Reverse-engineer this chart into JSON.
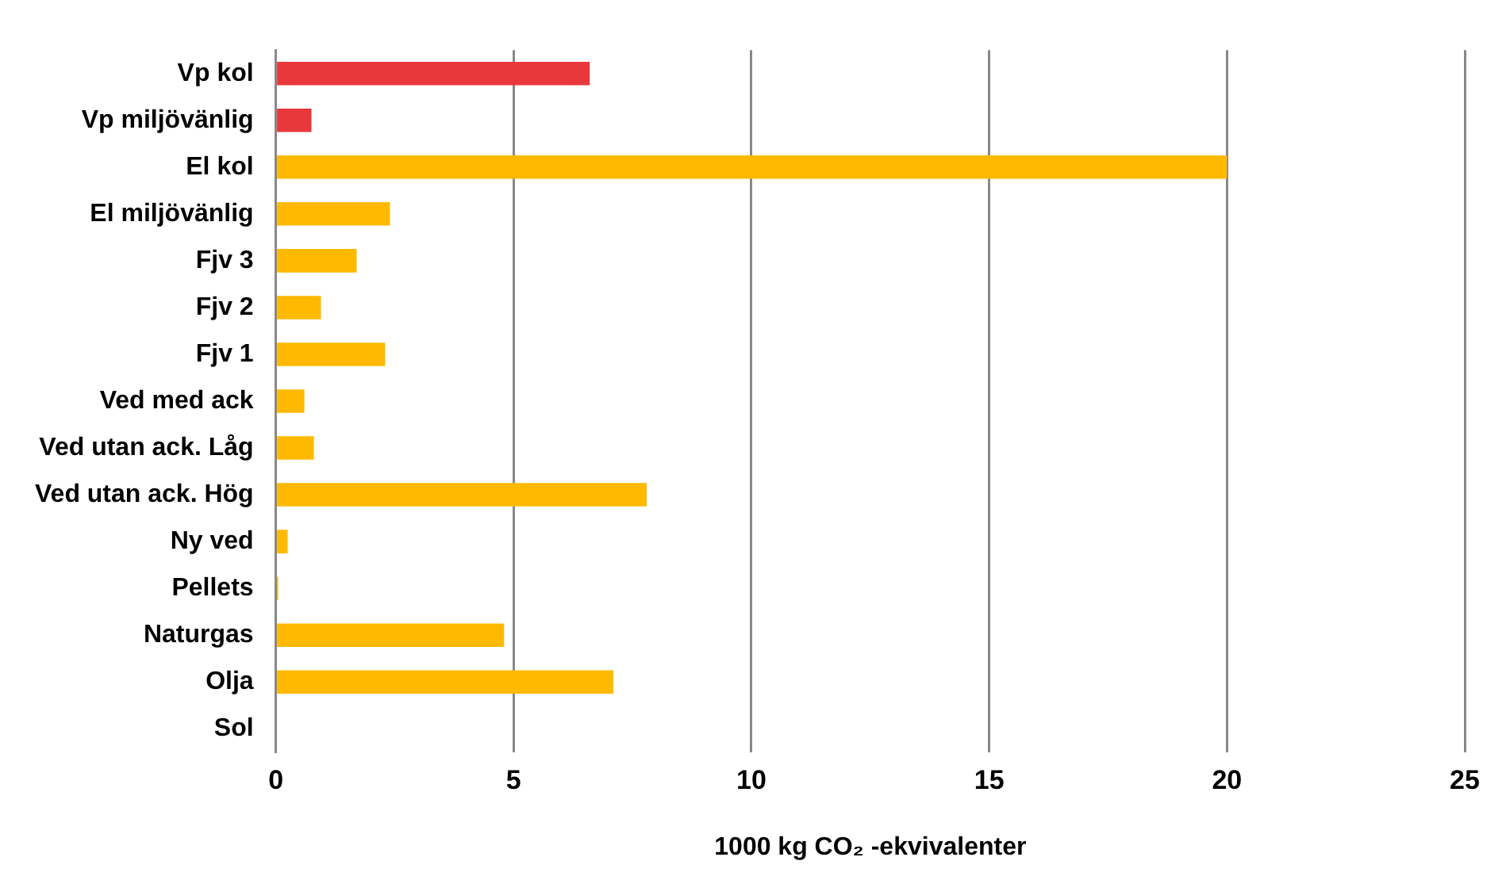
{
  "chart_data": {
    "type": "bar",
    "orientation": "horizontal",
    "xlabel": "1000 kg CO₂ -ekvivalenter",
    "categories": [
      "Vp kol",
      "Vp miljövänlig",
      "El kol",
      "El miljövänlig",
      "Fjv 3",
      "Fjv 2",
      "Fjv 1",
      "Ved med ack",
      "Ved utan ack. Låg",
      "Ved utan ack. Hög",
      "Ny ved",
      "Pellets",
      "Naturgas",
      "Olja",
      "Sol"
    ],
    "values": [
      6.6,
      0.75,
      20,
      2.4,
      1.7,
      0.95,
      2.3,
      0.6,
      0.8,
      7.8,
      0.25,
      0.05,
      4.8,
      7.1,
      0
    ],
    "colors": [
      "#e8383b",
      "#e8383b",
      "#ffb900",
      "#ffb900",
      "#ffb900",
      "#ffb900",
      "#ffb900",
      "#ffb900",
      "#ffb900",
      "#ffb900",
      "#ffb900",
      "#ffb900",
      "#ffb900",
      "#ffb900",
      "#ffb900"
    ],
    "xlim": [
      0,
      25
    ],
    "xticks": [
      0,
      5,
      10,
      15,
      20,
      25
    ],
    "grid": "x",
    "legend": false
  }
}
